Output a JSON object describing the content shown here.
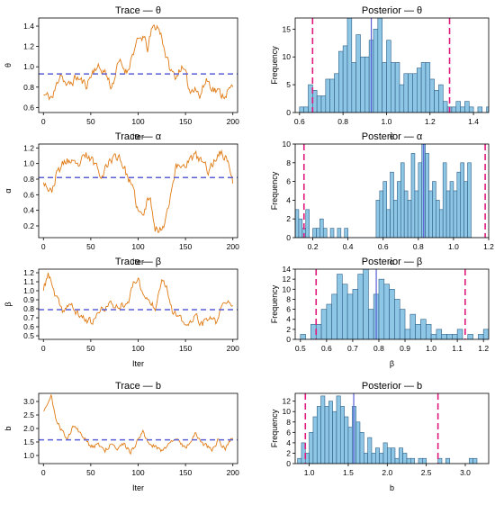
{
  "chart_data": [
    {
      "type": "line",
      "title": "Trace — θ",
      "xlabel": "Iter",
      "ylabel": "θ",
      "xlim": [
        -5,
        205
      ],
      "ylim": [
        0.55,
        1.48
      ],
      "xticks": [
        0,
        50,
        100,
        150,
        200
      ],
      "yticks": [
        0.6,
        0.8,
        1.0,
        1.2,
        1.4
      ],
      "series": [
        {
          "keyframes": [
            [
              0,
              0.72
            ],
            [
              10,
              0.7
            ],
            [
              18,
              0.95
            ],
            [
              25,
              0.8
            ],
            [
              35,
              0.9
            ],
            [
              45,
              0.82
            ],
            [
              55,
              1.0
            ],
            [
              65,
              0.95
            ],
            [
              72,
              0.8
            ],
            [
              80,
              1.05
            ],
            [
              88,
              0.95
            ],
            [
              95,
              1.15
            ],
            [
              100,
              1.25
            ],
            [
              105,
              1.3
            ],
            [
              110,
              1.18
            ],
            [
              115,
              1.38
            ],
            [
              120,
              1.4
            ],
            [
              125,
              1.3
            ],
            [
              130,
              1.08
            ],
            [
              135,
              0.95
            ],
            [
              140,
              0.9
            ],
            [
              145,
              1.0
            ],
            [
              150,
              0.92
            ],
            [
              155,
              0.75
            ],
            [
              160,
              0.82
            ],
            [
              165,
              0.7
            ],
            [
              172,
              0.88
            ],
            [
              180,
              0.78
            ],
            [
              190,
              0.72
            ],
            [
              200,
              0.8
            ]
          ],
          "seed": 11,
          "noise": 0.07
        }
      ],
      "hline": 0.93
    },
    {
      "type": "histogram",
      "title": "Posterior — θ",
      "xlabel": "θ",
      "ylabel": "Frequency",
      "xlim": [
        0.58,
        1.47
      ],
      "ylim": [
        0,
        17
      ],
      "xticks": [
        0.6,
        0.8,
        1.0,
        1.2,
        1.4
      ],
      "yticks": [
        0,
        5,
        10,
        15
      ],
      "bin_start": 0.6,
      "bin_width": 0.02,
      "counts": [
        1,
        1,
        5,
        4,
        3,
        3,
        6,
        6,
        7,
        11,
        12,
        17,
        9,
        14,
        10,
        10,
        13,
        15,
        17,
        9,
        13,
        9,
        9,
        5,
        7,
        7,
        7,
        8,
        9,
        9,
        6,
        4,
        5,
        2,
        1,
        1,
        2,
        1,
        2,
        1,
        0,
        1,
        0,
        1,
        2
      ],
      "vlines_dashed": [
        0.66,
        1.29
      ],
      "vline_solid": 0.93
    },
    {
      "type": "line",
      "title": "Trace — α",
      "xlabel": "Iter",
      "ylabel": "α",
      "xlim": [
        -5,
        205
      ],
      "ylim": [
        0.05,
        1.25
      ],
      "xticks": [
        0,
        50,
        100,
        150,
        200
      ],
      "yticks": [
        0.2,
        0.4,
        0.6,
        0.8,
        1.0,
        1.2
      ],
      "series": [
        {
          "keyframes": [
            [
              0,
              0.8
            ],
            [
              8,
              0.62
            ],
            [
              15,
              0.9
            ],
            [
              25,
              1.05
            ],
            [
              35,
              0.95
            ],
            [
              45,
              1.1
            ],
            [
              55,
              1.0
            ],
            [
              62,
              0.85
            ],
            [
              70,
              1.05
            ],
            [
              80,
              1.1
            ],
            [
              90,
              0.8
            ],
            [
              96,
              0.6
            ],
            [
              100,
              0.38
            ],
            [
              105,
              0.32
            ],
            [
              112,
              0.6
            ],
            [
              118,
              0.2
            ],
            [
              122,
              0.12
            ],
            [
              128,
              0.25
            ],
            [
              134,
              0.6
            ],
            [
              140,
              0.95
            ],
            [
              150,
              1.0
            ],
            [
              160,
              1.1
            ],
            [
              168,
              1.02
            ],
            [
              175,
              0.9
            ],
            [
              185,
              1.15
            ],
            [
              195,
              1.05
            ],
            [
              200,
              0.75
            ]
          ],
          "seed": 23,
          "noise": 0.09
        }
      ],
      "hline": 0.82
    },
    {
      "type": "histogram",
      "title": "Posterior — α",
      "xlabel": "α",
      "ylabel": "Frequency",
      "xlim": [
        0.1,
        1.2
      ],
      "ylim": [
        0,
        10
      ],
      "xticks": [
        0.2,
        0.4,
        0.6,
        0.8,
        1.0,
        1.2
      ],
      "yticks": [
        0,
        2,
        4,
        6,
        8,
        10
      ],
      "bin_start": 0.1,
      "bin_width": 0.02,
      "counts": [
        3,
        2,
        1,
        3,
        0,
        1,
        1,
        2,
        1,
        0,
        1,
        0,
        1,
        0,
        1,
        0,
        0,
        0,
        0,
        0,
        0,
        0,
        0,
        4,
        5,
        6,
        3,
        7,
        4,
        6,
        8,
        5,
        4,
        9,
        5,
        8,
        10,
        9,
        5,
        6,
        4,
        3,
        8,
        5,
        6,
        5,
        7,
        8,
        6,
        8
      ],
      "vlines_dashed": [
        0.15,
        1.18
      ],
      "vline_solid": 0.83
    },
    {
      "type": "line",
      "title": "Trace — β",
      "xlabel": "Iter",
      "ylabel": "β",
      "xlim": [
        -5,
        205
      ],
      "ylim": [
        0.46,
        1.24
      ],
      "xticks": [
        0,
        50,
        100,
        150,
        200
      ],
      "yticks": [
        0.5,
        0.6,
        0.7,
        0.8,
        0.9,
        1.0,
        1.1,
        1.2
      ],
      "series": [
        {
          "keyframes": [
            [
              0,
              1.0
            ],
            [
              5,
              1.2
            ],
            [
              12,
              0.95
            ],
            [
              20,
              0.78
            ],
            [
              28,
              0.85
            ],
            [
              35,
              0.75
            ],
            [
              45,
              0.68
            ],
            [
              52,
              0.65
            ],
            [
              60,
              0.78
            ],
            [
              70,
              0.85
            ],
            [
              80,
              0.82
            ],
            [
              90,
              0.9
            ],
            [
              96,
              1.1
            ],
            [
              100,
              1.15
            ],
            [
              105,
              0.95
            ],
            [
              110,
              0.9
            ],
            [
              118,
              0.82
            ],
            [
              125,
              1.15
            ],
            [
              130,
              1.05
            ],
            [
              137,
              0.75
            ],
            [
              145,
              0.68
            ],
            [
              152,
              0.6
            ],
            [
              160,
              0.72
            ],
            [
              168,
              0.62
            ],
            [
              175,
              0.7
            ],
            [
              182,
              0.65
            ],
            [
              190,
              0.85
            ],
            [
              200,
              0.88
            ]
          ],
          "seed": 37,
          "noise": 0.06
        }
      ],
      "hline": 0.79
    },
    {
      "type": "histogram",
      "title": "Posterior — β",
      "xlabel": "β",
      "ylabel": "Frequency",
      "xlim": [
        0.48,
        1.22
      ],
      "ylim": [
        0,
        14
      ],
      "xticks": [
        0.5,
        0.6,
        0.7,
        0.8,
        0.9,
        1.0,
        1.1,
        1.2
      ],
      "yticks": [
        0,
        2,
        4,
        6,
        8,
        10,
        12,
        14
      ],
      "bin_start": 0.5,
      "bin_width": 0.02,
      "counts": [
        1,
        0,
        3,
        3,
        6,
        7,
        9,
        13,
        11,
        9,
        10,
        13,
        14,
        6,
        9,
        12,
        11,
        10,
        8,
        6,
        2,
        5,
        3,
        4,
        3,
        1,
        2,
        1,
        1,
        1,
        2,
        0,
        1,
        0,
        1,
        2
      ],
      "vlines_dashed": [
        0.56,
        1.13
      ],
      "vline_solid": 0.79
    },
    {
      "type": "line",
      "title": "Trace — b",
      "xlabel": "Iter",
      "ylabel": "b",
      "xlim": [
        -5,
        205
      ],
      "ylim": [
        0.7,
        3.3
      ],
      "xticks": [
        0,
        50,
        100,
        150,
        200
      ],
      "yticks": [
        1.0,
        1.5,
        2.0,
        2.5,
        3.0
      ],
      "series": [
        {
          "keyframes": [
            [
              0,
              2.7
            ],
            [
              4,
              2.95
            ],
            [
              8,
              3.2
            ],
            [
              12,
              2.5
            ],
            [
              18,
              2.0
            ],
            [
              25,
              1.6
            ],
            [
              32,
              2.1
            ],
            [
              40,
              1.8
            ],
            [
              50,
              1.3
            ],
            [
              58,
              1.4
            ],
            [
              65,
              1.2
            ],
            [
              72,
              1.5
            ],
            [
              78,
              1.3
            ],
            [
              85,
              1.4
            ],
            [
              92,
              1.1
            ],
            [
              100,
              1.6
            ],
            [
              105,
              1.9
            ],
            [
              110,
              1.5
            ],
            [
              118,
              1.3
            ],
            [
              125,
              1.2
            ],
            [
              132,
              1.4
            ],
            [
              140,
              1.6
            ],
            [
              150,
              1.3
            ],
            [
              160,
              1.8
            ],
            [
              170,
              1.4
            ],
            [
              178,
              1.2
            ],
            [
              185,
              1.6
            ],
            [
              192,
              1.2
            ],
            [
              200,
              1.7
            ]
          ],
          "seed": 51,
          "noise": 0.13
        }
      ],
      "hline": 1.58
    },
    {
      "type": "histogram",
      "title": "Posterior — b",
      "xlabel": "b",
      "ylabel": "Frequency",
      "xlim": [
        0.82,
        3.3
      ],
      "ylim": [
        0,
        13.5
      ],
      "xticks": [
        1.0,
        1.5,
        2.0,
        2.5,
        3.0
      ],
      "yticks": [
        0,
        2,
        4,
        6,
        8,
        10,
        12
      ],
      "bin_start": 0.85,
      "bin_width": 0.05,
      "counts": [
        1,
        4,
        2,
        6,
        9,
        11,
        13,
        11,
        12,
        10,
        13,
        11,
        9,
        7,
        11,
        8,
        6,
        2,
        5,
        2,
        3,
        2,
        4,
        3,
        3,
        1,
        3,
        2,
        1,
        1,
        0,
        1,
        1,
        0,
        0,
        0,
        1,
        0,
        1,
        0,
        0,
        0,
        0,
        0,
        1,
        1
      ],
      "vlines_dashed": [
        0.95,
        2.65
      ],
      "vline_solid": 1.57
    }
  ]
}
